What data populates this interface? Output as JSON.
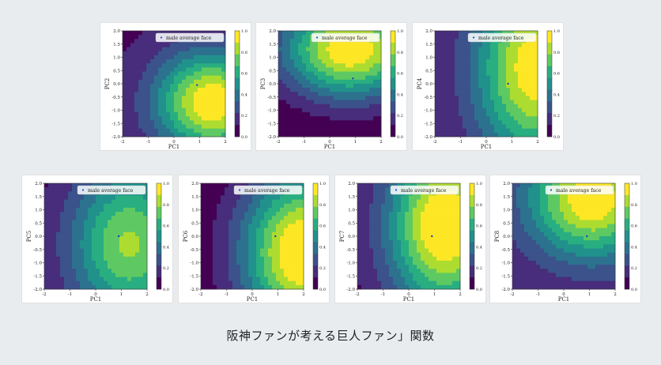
{
  "caption": "阪神ファンが考える巨人ファン」関数",
  "colormap": [
    "#440154",
    "#472d7b",
    "#3b528b",
    "#2c728e",
    "#21918c",
    "#28ae80",
    "#5ec962",
    "#addc30",
    "#fde725"
  ],
  "chart_data": [
    {
      "type": "contour",
      "xlabel": "PC1",
      "ylabel": "PC2",
      "xlim": [
        -2,
        2
      ],
      "ylim": [
        -2,
        2
      ],
      "xticks": [
        "-2",
        "-1",
        "0",
        "1",
        "2"
      ],
      "yticks": [
        "2.0",
        "1.5",
        "1.0",
        "0.5",
        "0.0",
        "-0.5",
        "-1.0",
        "-1.5",
        "-2.0"
      ],
      "colorbar_ticks": [
        "1.0",
        "0.8",
        "0.6",
        "0.4",
        "0.2",
        "0.0"
      ],
      "legend": "male average face",
      "point": [
        0.9,
        -0.05
      ],
      "center": [
        1.5,
        -0.7
      ],
      "spread_x": 2.2,
      "spread_y": 1.9,
      "base": 0.08,
      "amp": 0.92
    },
    {
      "type": "contour",
      "xlabel": "PC1",
      "ylabel": "PC3",
      "xlim": [
        -2,
        2
      ],
      "ylim": [
        -2,
        2
      ],
      "xticks": [
        "-2",
        "-1",
        "0",
        "1",
        "2"
      ],
      "yticks": [
        "2.0",
        "1.5",
        "1.0",
        "0.5",
        "0.0",
        "-0.5",
        "-1.0",
        "-1.5",
        "-2.0"
      ],
      "colorbar_ticks": [
        "1.0",
        "0.8",
        "0.6",
        "0.4",
        "0.2",
        "0.0"
      ],
      "legend": "male average face",
      "point": [
        0.9,
        0.2
      ],
      "center": [
        0.8,
        1.3
      ],
      "spread_x": 2.6,
      "spread_y": 1.8,
      "base": 0.0,
      "amp": 1.0
    },
    {
      "type": "contour",
      "xlabel": "PC1",
      "ylabel": "PC4",
      "xlim": [
        -2,
        2
      ],
      "ylim": [
        -2,
        2
      ],
      "xticks": [
        "-2",
        "-1",
        "0",
        "1",
        "2"
      ],
      "yticks": [
        "2.0",
        "1.5",
        "1.0",
        "0.5",
        "0.0",
        "-0.5",
        "-1.0",
        "-1.5",
        "-2.0"
      ],
      "colorbar_ticks": [
        "1.0",
        "0.8",
        "0.6",
        "0.4",
        "0.2",
        "0.0"
      ],
      "legend": "male average face",
      "point": [
        0.85,
        0.0
      ],
      "center": [
        1.9,
        0.6
      ],
      "spread_x": 2.3,
      "spread_y": 3.6,
      "base": 0.08,
      "amp": 0.9
    },
    {
      "type": "contour",
      "xlabel": "PC1",
      "ylabel": "PC5",
      "xlim": [
        -2,
        2
      ],
      "ylim": [
        -2,
        2
      ],
      "xticks": [
        "-2",
        "-1",
        "0",
        "1",
        "2"
      ],
      "yticks": [
        "2.0",
        "1.5",
        "1.0",
        "0.5",
        "0.0",
        "-0.5",
        "-1.0",
        "-1.5",
        "-2.0"
      ],
      "colorbar_ticks": [
        "1.0",
        "0.8",
        "0.6",
        "0.4",
        "0.2",
        "0.0"
      ],
      "legend": "male average face",
      "point": [
        0.9,
        0.0
      ],
      "center": [
        1.3,
        -0.3
      ],
      "spread_x": 2.3,
      "spread_y": 3.0,
      "base": 0.05,
      "amp": 0.75
    },
    {
      "type": "contour",
      "xlabel": "PC1",
      "ylabel": "PC6",
      "xlim": [
        -2,
        2
      ],
      "ylim": [
        -2,
        2
      ],
      "xticks": [
        "-2",
        "-1",
        "0",
        "1",
        "2"
      ],
      "yticks": [
        "2.0",
        "1.5",
        "1.0",
        "0.5",
        "0.0",
        "-0.5",
        "-1.0",
        "-1.5",
        "-2.0"
      ],
      "colorbar_ticks": [
        "1.0",
        "0.8",
        "0.6",
        "0.4",
        "0.2",
        "0.0"
      ],
      "legend": "male average face",
      "point": [
        0.9,
        0.0
      ],
      "center": [
        2.0,
        -0.6
      ],
      "spread_x": 2.4,
      "spread_y": 3.0,
      "base": 0.0,
      "amp": 1.05
    },
    {
      "type": "contour",
      "xlabel": "PC1",
      "ylabel": "PC7",
      "xlim": [
        -2,
        2
      ],
      "ylim": [
        -2,
        2
      ],
      "xticks": [
        "-2",
        "-1",
        "0",
        "1",
        "2"
      ],
      "yticks": [
        "2.0",
        "1.5",
        "1.0",
        "0.5",
        "0.0",
        "-0.5",
        "-1.0",
        "-1.5",
        "-2.0"
      ],
      "colorbar_ticks": [
        "1.0",
        "0.8",
        "0.6",
        "0.4",
        "0.2",
        "0.0"
      ],
      "legend": "male average face",
      "point": [
        0.9,
        0.0
      ],
      "center": [
        1.4,
        0.4
      ],
      "spread_x": 2.2,
      "spread_y": 3.2,
      "base": 0.05,
      "amp": 1.0
    },
    {
      "type": "contour",
      "xlabel": "PC1",
      "ylabel": "PC8",
      "xlim": [
        -2,
        2
      ],
      "ylim": [
        -2,
        2
      ],
      "xticks": [
        "-2",
        "-1",
        "0",
        "1",
        "2"
      ],
      "yticks": [
        "2.0",
        "1.5",
        "1.0",
        "0.5",
        "0.0",
        "-0.5",
        "-1.0",
        "-1.5",
        "-2.0"
      ],
      "colorbar_ticks": [
        "1.0",
        "0.8",
        "0.6",
        "0.4",
        "0.2",
        "0.0"
      ],
      "legend": "male average face",
      "point": [
        0.9,
        0.0
      ],
      "center": [
        1.1,
        1.4
      ],
      "spread_x": 2.5,
      "spread_y": 2.2,
      "base": 0.1,
      "amp": 0.9
    }
  ]
}
